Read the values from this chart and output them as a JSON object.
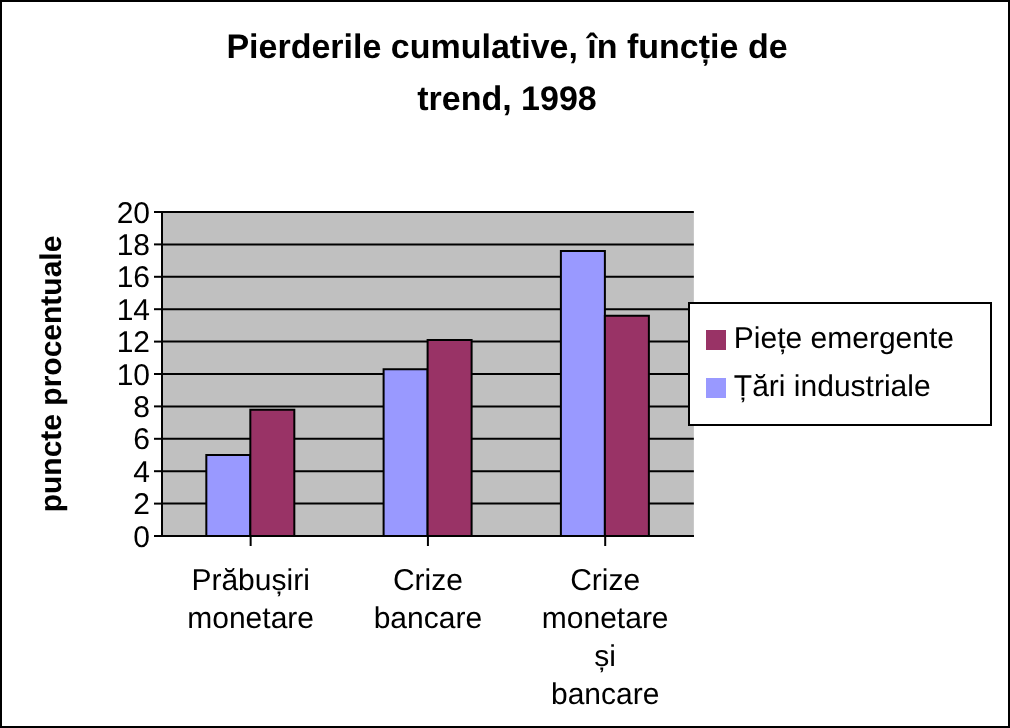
{
  "chart_data": {
    "type": "bar",
    "title": "Pierderile cumulative, în funcție de trend, 1998",
    "ylabel": "puncte procentuale",
    "categories": [
      "Prăbușiri monetare",
      "Crize bancare",
      "Crize monetare și bancare"
    ],
    "series": [
      {
        "name": "Țări industriale",
        "color": "#9999ff",
        "values": [
          5,
          10.3,
          17.6
        ]
      },
      {
        "name": "Piețe emergente",
        "color": "#993366",
        "values": [
          7.8,
          12.1,
          13.6
        ]
      }
    ],
    "ylim": [
      0,
      20
    ],
    "yticks": [
      0,
      2,
      4,
      6,
      8,
      10,
      12,
      14,
      16,
      18,
      20
    ],
    "grid": "y",
    "legend": "right"
  }
}
